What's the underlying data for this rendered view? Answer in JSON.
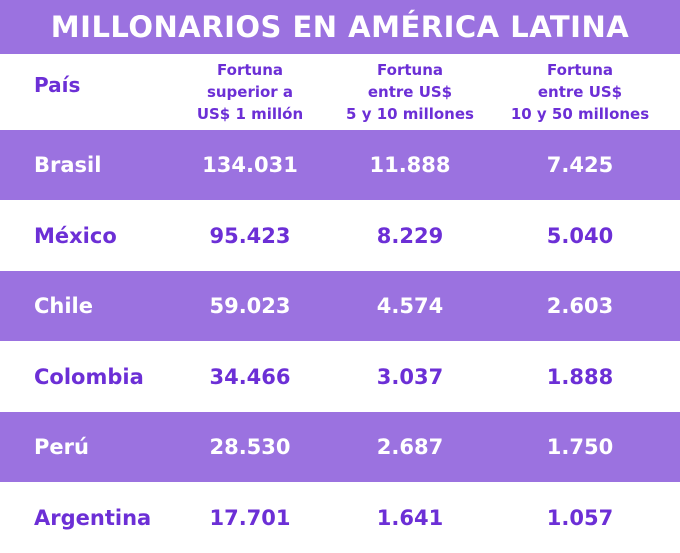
{
  "chart_data": {
    "type": "table",
    "title": "MILLONARIOS EN AMÉRICA LATINA",
    "columns": [
      "País",
      "Fortuna\nsuperior a\nUS$ 1 millón",
      "Fortuna\nentre US$\n5 y 10 millones",
      "Fortuna\nentre US$\n10 y 50 millones"
    ],
    "rows": [
      {
        "country": "Brasil",
        "values": [
          "134.031",
          "11.888",
          "7.425"
        ]
      },
      {
        "country": "México",
        "values": [
          "95.423",
          "8.229",
          "5.040"
        ]
      },
      {
        "country": "Chile",
        "values": [
          "59.023",
          "4.574",
          "2.603"
        ]
      },
      {
        "country": "Colombia",
        "values": [
          "34.466",
          "3.037",
          "1.888"
        ]
      },
      {
        "country": "Perú",
        "values": [
          "28.530",
          "2.687",
          "1.750"
        ]
      },
      {
        "country": "Argentina",
        "values": [
          "17.701",
          "1.641",
          "1.057"
        ]
      }
    ]
  },
  "colors": {
    "band": "#9b72e0",
    "accent_text": "#6c2fd6",
    "band_text": "#ffffff"
  }
}
